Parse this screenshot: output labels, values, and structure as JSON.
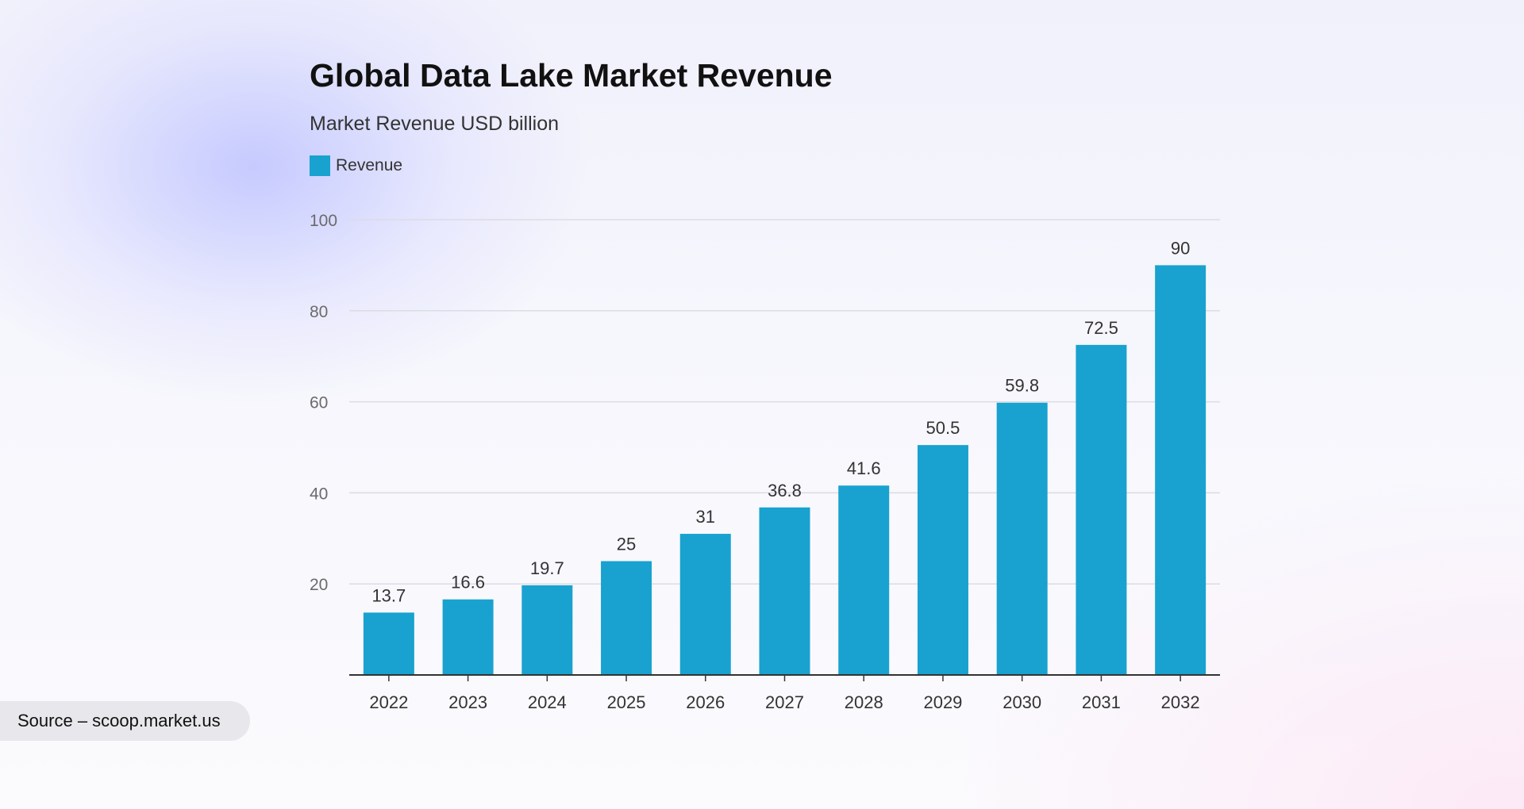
{
  "chart_data": {
    "type": "bar",
    "title": "Global Data Lake Market Revenue",
    "subtitle": "Market Revenue USD billion",
    "categories": [
      "2022",
      "2023",
      "2024",
      "2025",
      "2026",
      "2027",
      "2028",
      "2029",
      "2030",
      "2031",
      "2032"
    ],
    "series": [
      {
        "name": "Revenue",
        "values": [
          13.7,
          16.6,
          19.7,
          25,
          31,
          36.8,
          41.6,
          50.5,
          59.8,
          72.5,
          90
        ],
        "data_labels": [
          "13.7",
          "16.6",
          "19.7",
          "25",
          "31",
          "36.8",
          "41.6",
          "50.5",
          "59.8",
          "72.5",
          "90"
        ]
      }
    ],
    "ylim": [
      0,
      100
    ],
    "yticks": [
      20,
      40,
      60,
      80,
      100
    ],
    "grid": true,
    "legend_position": "top-left",
    "bar_color": "#19a2cf"
  },
  "source": "Source – scoop.market.us"
}
